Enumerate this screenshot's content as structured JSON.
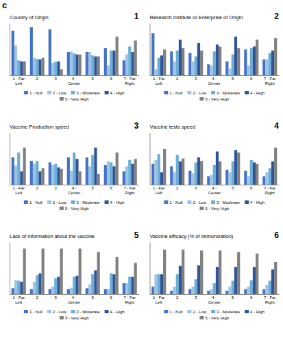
{
  "title": "c",
  "chart_data": [
    {
      "type": "bar",
      "title": "Country of Origin",
      "annotations": [
        "1"
      ],
      "categories": [
        "1 - Far\nLeft",
        "2",
        "3",
        "4 -\nCenter",
        "5",
        "6",
        "7 - Far\nRight"
      ],
      "series": [
        {
          "name": "1 - Null",
          "color": "#4472C4",
          "values": [
            0.9,
            0.97,
            0.93,
            0.47,
            0.47,
            0.55,
            0.3
          ]
        },
        {
          "name": "2 - Low",
          "color": "#9DC3E6",
          "values": [
            0.6,
            0.35,
            0.25,
            0.48,
            0.47,
            0.2,
            0.42
          ]
        },
        {
          "name": "3 - Moderate",
          "color": "#6BAED6",
          "values": [
            0.3,
            0.33,
            0.27,
            0.44,
            0.4,
            0.5,
            0.58
          ]
        },
        {
          "name": "4 - High",
          "color": "#2F5597",
          "values": [
            0.28,
            0.32,
            0.28,
            0.42,
            0.38,
            0.5,
            0.47
          ]
        },
        {
          "name": "5 - Very High",
          "color": "#808080",
          "values": [
            0.28,
            0.35,
            0.12,
            0.42,
            0.38,
            0.78,
            0.7
          ]
        }
      ],
      "ylim": [
        0,
        1.05
      ],
      "yticks": [],
      "grid": false,
      "legend": "bottom",
      "tick_labels": "x"
    },
    {
      "type": "bar",
      "title": "Research Institute or Enterprise of Origin",
      "annotations": [
        "2"
      ],
      "categories": [
        "1 - Far\nLeft",
        "2",
        "3",
        "4 -\nCenter",
        "5",
        "6",
        "7 - Far\nRight"
      ],
      "series": [
        {
          "name": "1 - Null",
          "color": "#4472C4",
          "values": [
            0.85,
            0.48,
            0.45,
            0.22,
            0.28,
            0.52,
            0.32
          ]
        },
        {
          "name": "2 - Low",
          "color": "#9DC3E6",
          "values": [
            0.12,
            0.28,
            0.28,
            0.2,
            0.13,
            0.2,
            0.32
          ]
        },
        {
          "name": "3 - Moderate",
          "color": "#6BAED6",
          "values": [
            0.35,
            0.5,
            0.38,
            0.48,
            0.42,
            0.55,
            0.45
          ]
        },
        {
          "name": "4 - High",
          "color": "#2F5597",
          "values": [
            0.4,
            0.72,
            0.65,
            0.62,
            0.78,
            0.58,
            0.5
          ]
        },
        {
          "name": "5 - Very High",
          "color": "#808080",
          "values": [
            0.52,
            0.55,
            0.5,
            0.58,
            0.55,
            0.72,
            0.75
          ]
        }
      ],
      "ylim": [
        0,
        1.05
      ],
      "yticks": [],
      "grid": false,
      "legend": "bottom",
      "tick_labels": "x"
    },
    {
      "type": "bar",
      "title": "Vaccine Production speed",
      "annotations": [
        "3"
      ],
      "categories": [
        "1 - Far\nLeft",
        "2",
        "3",
        "4 -\nCenter",
        "5",
        "6",
        "7 - Far\nRight"
      ],
      "series": [
        {
          "name": "1 - Null",
          "color": "#4472C4",
          "values": [
            0.55,
            0.48,
            0.45,
            0.55,
            0.55,
            0.4,
            0.27
          ]
        },
        {
          "name": "2 - Low",
          "color": "#9DC3E6",
          "values": [
            0.38,
            0.42,
            0.4,
            0.28,
            0.37,
            0.47,
            0.37
          ]
        },
        {
          "name": "3 - Moderate",
          "color": "#6BAED6",
          "values": [
            0.65,
            0.48,
            0.42,
            0.65,
            0.6,
            0.45,
            0.5
          ]
        },
        {
          "name": "4 - High",
          "color": "#2F5597",
          "values": [
            0.27,
            0.27,
            0.35,
            0.52,
            0.75,
            0.37,
            0.42
          ]
        },
        {
          "name": "5 - Very High",
          "color": "#808080",
          "values": [
            0.75,
            0.33,
            0.32,
            0.27,
            0.22,
            0.65,
            0.52
          ]
        }
      ],
      "ylim": [
        0,
        1.05
      ],
      "yticks": [],
      "grid": false,
      "legend": "bottom",
      "tick_labels": "x"
    },
    {
      "type": "bar",
      "title": "Vaccine tests speed",
      "annotations": [
        "4"
      ],
      "categories": [
        "1 - Far\nLeft",
        "2",
        "3",
        "4 -\nCenter",
        "5",
        "6",
        "7 - Far\nRight"
      ],
      "series": [
        {
          "name": "1 - Null",
          "color": "#4472C4",
          "values": [
            0.42,
            0.37,
            0.28,
            0.17,
            0.3,
            0.28,
            0.17
          ]
        },
        {
          "name": "2 - Low",
          "color": "#9DC3E6",
          "values": [
            0.5,
            0.25,
            0.23,
            0.2,
            0.25,
            0.17,
            0.25
          ]
        },
        {
          "name": "3 - Moderate",
          "color": "#6BAED6",
          "values": [
            0.62,
            0.6,
            0.45,
            0.4,
            0.47,
            0.5,
            0.33
          ]
        },
        {
          "name": "4 - High",
          "color": "#2F5597",
          "values": [
            0.25,
            0.47,
            0.55,
            0.67,
            0.7,
            0.45,
            0.47
          ]
        },
        {
          "name": "5 - Very High",
          "color": "#808080",
          "values": [
            0.72,
            0.53,
            0.48,
            0.47,
            0.65,
            0.42,
            0.75
          ]
        }
      ],
      "ylim": [
        0,
        1.05
      ],
      "yticks": [],
      "grid": false,
      "legend": "bottom",
      "tick_labels": "x"
    },
    {
      "type": "bar",
      "title": "Lack of information about the vaccine",
      "annotations": [
        "5"
      ],
      "categories": [
        "1 - Far\nLeft",
        "2",
        "3",
        "4 -\nCenter",
        "5",
        "6",
        "7 - Far\nRight"
      ],
      "series": [
        {
          "name": "1 - Null",
          "color": "#4472C4",
          "values": [
            0.12,
            0.1,
            0.1,
            0.1,
            0.12,
            0.1,
            0.22
          ]
        },
        {
          "name": "2 - Low",
          "color": "#9DC3E6",
          "values": [
            0.28,
            0.25,
            0.15,
            0.13,
            0.2,
            0.1,
            0.22
          ]
        },
        {
          "name": "3 - Moderate",
          "color": "#6BAED6",
          "values": [
            0.27,
            0.38,
            0.32,
            0.35,
            0.4,
            0.42,
            0.35
          ]
        },
        {
          "name": "4 - High",
          "color": "#2F5597",
          "values": [
            0.25,
            0.42,
            0.35,
            0.37,
            0.48,
            0.4,
            0.35
          ]
        },
        {
          "name": "5 - Very High",
          "color": "#808080",
          "values": [
            0.92,
            0.92,
            0.92,
            0.92,
            0.85,
            0.75,
            0.63
          ]
        }
      ],
      "ylim": [
        0,
        1.05
      ],
      "yticks": [],
      "grid": false,
      "legend": "bottom",
      "tick_labels": "x"
    },
    {
      "type": "bar",
      "title": "Vaccine efficacy (% of immunization)",
      "annotations": [
        "6"
      ],
      "categories": [
        "1 - Far\nLeft",
        "2",
        "3",
        "4 -\nCenter",
        "5",
        "6",
        "7 - Far\nRight"
      ],
      "series": [
        {
          "name": "1 - Null",
          "color": "#4472C4",
          "values": [
            0.15,
            0.07,
            0.1,
            0.07,
            0.07,
            0.1,
            0.1
          ]
        },
        {
          "name": "2 - Low",
          "color": "#9DC3E6",
          "values": [
            0.4,
            0.15,
            0.15,
            0.1,
            0.15,
            0.15,
            0.18
          ]
        },
        {
          "name": "3 - Moderate",
          "color": "#6BAED6",
          "values": [
            0.4,
            0.4,
            0.3,
            0.22,
            0.27,
            0.28,
            0.27
          ]
        },
        {
          "name": "4 - High",
          "color": "#2F5597",
          "values": [
            0.4,
            0.57,
            0.58,
            0.55,
            0.55,
            0.55,
            0.5
          ]
        },
        {
          "name": "5 - Very High",
          "color": "#808080",
          "values": [
            0.9,
            0.9,
            0.88,
            0.88,
            0.85,
            0.82,
            0.65
          ]
        }
      ],
      "ylim": [
        0,
        1.05
      ],
      "yticks": [],
      "grid": false,
      "legend": "bottom",
      "tick_labels": "x"
    }
  ]
}
